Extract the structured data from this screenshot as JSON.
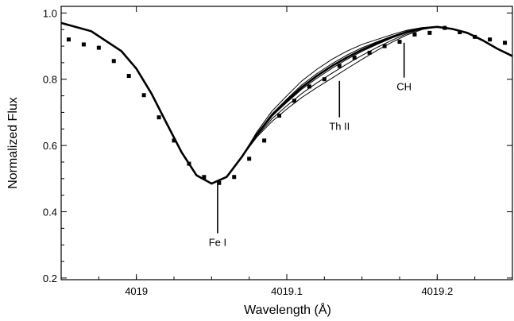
{
  "chart_data": {
    "type": "line",
    "title": "",
    "xlabel": "Wavelength (Å)",
    "ylabel": "Normalized Flux",
    "xlim": [
      4018.95,
      4019.25
    ],
    "ylim": [
      0.195,
      1.02
    ],
    "xticks": [
      {
        "value": 4019.0,
        "label": "4019"
      },
      {
        "value": 4019.1,
        "label": "4019.1"
      },
      {
        "value": 4019.2,
        "label": "4019.2"
      }
    ],
    "yticks": [
      {
        "value": 0.2,
        "label": "0.2"
      },
      {
        "value": 0.4,
        "label": "0.4"
      },
      {
        "value": 0.6,
        "label": "0.6"
      },
      {
        "value": 0.8,
        "label": "0.8"
      },
      {
        "value": 1.0,
        "label": "1.0"
      }
    ],
    "grid": false,
    "legend": "none",
    "observed_points": {
      "x": [
        4018.955,
        4018.965,
        4018.975,
        4018.985,
        4018.995,
        4019.005,
        4019.015,
        4019.025,
        4019.035,
        4019.045,
        4019.055,
        4019.065,
        4019.075,
        4019.085,
        4019.095,
        4019.105,
        4019.115,
        4019.125,
        4019.135,
        4019.145,
        4019.155,
        4019.165,
        4019.175,
        4019.185,
        4019.195,
        4019.205,
        4019.215,
        4019.225,
        4019.235,
        4019.245
      ],
      "y": [
        0.92,
        0.905,
        0.895,
        0.855,
        0.81,
        0.752,
        0.685,
        0.615,
        0.545,
        0.505,
        0.487,
        0.505,
        0.56,
        0.615,
        0.69,
        0.735,
        0.778,
        0.8,
        0.84,
        0.865,
        0.88,
        0.9,
        0.913,
        0.935,
        0.94,
        0.955,
        0.942,
        0.928,
        0.92,
        0.91
      ]
    },
    "synthetic_series": [
      {
        "x": [
          4018.95,
          4018.97,
          4018.99,
          4019.0,
          4019.01,
          4019.02,
          4019.03,
          4019.04,
          4019.05,
          4019.06,
          4019.07,
          4019.08,
          4019.09,
          4019.1,
          4019.11,
          4019.12,
          4019.13,
          4019.14,
          4019.15,
          4019.16,
          4019.17,
          4019.18,
          4019.19,
          4019.2,
          4019.21,
          4019.22,
          4019.23,
          4019.24,
          4019.25
        ],
        "y": [
          0.97,
          0.945,
          0.885,
          0.832,
          0.757,
          0.668,
          0.58,
          0.51,
          0.485,
          0.505,
          0.565,
          0.64,
          0.703,
          0.75,
          0.795,
          0.83,
          0.86,
          0.885,
          0.905,
          0.92,
          0.935,
          0.948,
          0.956,
          0.958,
          0.952,
          0.94,
          0.918,
          0.892,
          0.87
        ]
      },
      {
        "x": [
          4018.95,
          4018.97,
          4018.99,
          4019.0,
          4019.01,
          4019.02,
          4019.03,
          4019.04,
          4019.05,
          4019.06,
          4019.07,
          4019.08,
          4019.09,
          4019.1,
          4019.11,
          4019.12,
          4019.13,
          4019.14,
          4019.15,
          4019.16,
          4019.17,
          4019.18,
          4019.19,
          4019.2,
          4019.21,
          4019.22,
          4019.23,
          4019.24,
          4019.25
        ],
        "y": [
          0.97,
          0.945,
          0.885,
          0.832,
          0.757,
          0.668,
          0.58,
          0.51,
          0.485,
          0.505,
          0.565,
          0.635,
          0.695,
          0.74,
          0.783,
          0.817,
          0.847,
          0.873,
          0.895,
          0.913,
          0.93,
          0.945,
          0.955,
          0.958,
          0.952,
          0.94,
          0.918,
          0.892,
          0.87
        ]
      },
      {
        "x": [
          4018.95,
          4018.97,
          4018.99,
          4019.0,
          4019.01,
          4019.02,
          4019.03,
          4019.04,
          4019.05,
          4019.06,
          4019.07,
          4019.08,
          4019.09,
          4019.1,
          4019.11,
          4019.12,
          4019.13,
          4019.14,
          4019.15,
          4019.16,
          4019.17,
          4019.18,
          4019.19,
          4019.2,
          4019.21,
          4019.22,
          4019.23,
          4019.24,
          4019.25
        ],
        "y": [
          0.97,
          0.945,
          0.885,
          0.832,
          0.757,
          0.668,
          0.58,
          0.51,
          0.485,
          0.505,
          0.565,
          0.632,
          0.688,
          0.73,
          0.77,
          0.803,
          0.833,
          0.86,
          0.884,
          0.905,
          0.925,
          0.942,
          0.954,
          0.958,
          0.952,
          0.94,
          0.918,
          0.892,
          0.87
        ]
      },
      {
        "x": [
          4018.95,
          4018.97,
          4018.99,
          4019.0,
          4019.01,
          4019.02,
          4019.03,
          4019.04,
          4019.05,
          4019.06,
          4019.07,
          4019.08,
          4019.09,
          4019.1,
          4019.11,
          4019.12,
          4019.13,
          4019.14,
          4019.15,
          4019.16,
          4019.17,
          4019.18,
          4019.19,
          4019.2,
          4019.21,
          4019.22,
          4019.23,
          4019.24,
          4019.25
        ],
        "y": [
          0.97,
          0.945,
          0.885,
          0.832,
          0.757,
          0.668,
          0.58,
          0.51,
          0.485,
          0.505,
          0.565,
          0.628,
          0.68,
          0.72,
          0.757,
          0.789,
          0.818,
          0.846,
          0.872,
          0.896,
          0.918,
          0.938,
          0.952,
          0.958,
          0.952,
          0.94,
          0.918,
          0.892,
          0.87
        ]
      },
      {
        "x": [
          4018.95,
          4018.97,
          4018.99,
          4019.0,
          4019.01,
          4019.02,
          4019.03,
          4019.04,
          4019.05,
          4019.06,
          4019.07,
          4019.08,
          4019.09,
          4019.1,
          4019.11,
          4019.12,
          4019.13,
          4019.14,
          4019.15,
          4019.16,
          4019.17,
          4019.18,
          4019.19,
          4019.2,
          4019.21,
          4019.22,
          4019.23,
          4019.24,
          4019.25
        ],
        "y": [
          0.97,
          0.945,
          0.885,
          0.832,
          0.757,
          0.668,
          0.58,
          0.51,
          0.485,
          0.505,
          0.565,
          0.625,
          0.672,
          0.71,
          0.745,
          0.775,
          0.803,
          0.832,
          0.86,
          0.887,
          0.912,
          0.934,
          0.95,
          0.958,
          0.952,
          0.94,
          0.918,
          0.892,
          0.87
        ]
      }
    ],
    "best_fit_series": {
      "x": [
        4018.95,
        4018.97,
        4018.99,
        4019.0,
        4019.01,
        4019.02,
        4019.03,
        4019.04,
        4019.05,
        4019.06,
        4019.07,
        4019.08,
        4019.09,
        4019.1,
        4019.11,
        4019.12,
        4019.13,
        4019.14,
        4019.15,
        4019.16,
        4019.17,
        4019.18,
        4019.19,
        4019.2,
        4019.21,
        4019.22,
        4019.23,
        4019.24,
        4019.25
      ],
      "y": [
        0.97,
        0.945,
        0.885,
        0.832,
        0.757,
        0.668,
        0.58,
        0.51,
        0.485,
        0.505,
        0.565,
        0.633,
        0.69,
        0.735,
        0.776,
        0.81,
        0.84,
        0.866,
        0.889,
        0.909,
        0.927,
        0.943,
        0.954,
        0.958,
        0.952,
        0.94,
        0.918,
        0.892,
        0.87
      ]
    },
    "annotations": [
      {
        "label": "Fe I",
        "x": 4019.054,
        "y_from": 0.487,
        "y_to": 0.335
      },
      {
        "label": "Th II",
        "x": 4019.135,
        "y_from": 0.795,
        "y_to": 0.685
      },
      {
        "label": "CH",
        "x": 4019.178,
        "y_from": 0.91,
        "y_to": 0.805
      }
    ]
  }
}
